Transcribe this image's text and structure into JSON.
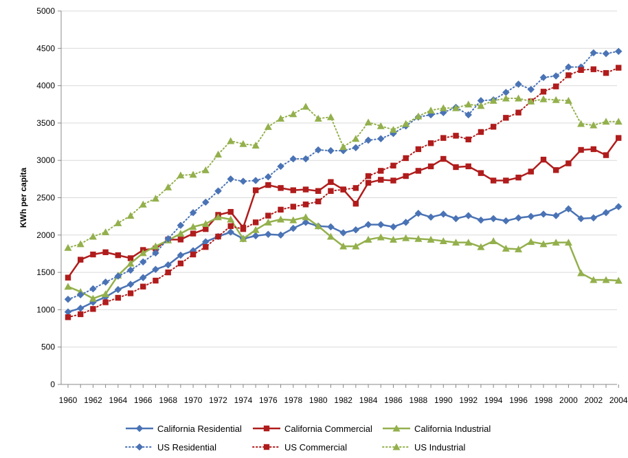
{
  "chart_data": {
    "type": "line",
    "title": "",
    "xlabel": "",
    "ylabel": "KWh per capita",
    "ylim": [
      0,
      5000
    ],
    "yticks": [
      0,
      500,
      1000,
      1500,
      2000,
      2500,
      3000,
      3500,
      4000,
      4500,
      5000
    ],
    "xticks": [
      1960,
      1962,
      1964,
      1966,
      1968,
      1970,
      1972,
      1974,
      1976,
      1978,
      1980,
      1982,
      1984,
      1986,
      1988,
      1990,
      1992,
      1994,
      1996,
      1998,
      2000,
      2002,
      2004
    ],
    "grid": "horizontal",
    "legend": "bottom",
    "x": [
      1960,
      1961,
      1962,
      1963,
      1964,
      1965,
      1966,
      1967,
      1968,
      1969,
      1970,
      1971,
      1972,
      1973,
      1974,
      1975,
      1976,
      1977,
      1978,
      1979,
      1980,
      1981,
      1982,
      1983,
      1984,
      1985,
      1986,
      1987,
      1988,
      1989,
      1990,
      1991,
      1992,
      1993,
      1994,
      1995,
      1996,
      1997,
      1998,
      1999,
      2000,
      2001,
      2002,
      2003,
      2004
    ],
    "series": [
      {
        "name": "California Residential",
        "color": "#4a73b5",
        "style": "solid",
        "marker": "diamond",
        "values": [
          970,
          1020,
          1100,
          1170,
          1270,
          1340,
          1430,
          1540,
          1600,
          1730,
          1790,
          1910,
          1980,
          2040,
          1950,
          1990,
          2010,
          2000,
          2090,
          2170,
          2120,
          2110,
          2030,
          2070,
          2140,
          2140,
          2110,
          2170,
          2290,
          2240,
          2280,
          2220,
          2260,
          2200,
          2220,
          2190,
          2230,
          2250,
          2280,
          2260,
          2350,
          2220,
          2230,
          2300,
          2380
        ]
      },
      {
        "name": "California Commercial",
        "color": "#b01c1c",
        "style": "solid",
        "marker": "square",
        "values": [
          1430,
          1670,
          1740,
          1770,
          1730,
          1690,
          1800,
          1820,
          1940,
          1940,
          2020,
          2080,
          2270,
          2310,
          2100,
          2600,
          2670,
          2630,
          2600,
          2610,
          2590,
          2710,
          2610,
          2420,
          2700,
          2740,
          2730,
          2790,
          2860,
          2920,
          3020,
          2910,
          2920,
          2830,
          2730,
          2730,
          2770,
          2850,
          3010,
          2870,
          2960,
          3140,
          3150,
          3070,
          3300
        ]
      },
      {
        "name": "California Industrial",
        "color": "#93b04c",
        "style": "solid",
        "marker": "triangle",
        "values": [
          1310,
          1240,
          1150,
          1210,
          1460,
          1620,
          1760,
          1850,
          1930,
          2020,
          2110,
          2150,
          2240,
          2210,
          1950,
          2070,
          2170,
          2210,
          2200,
          2240,
          2120,
          1980,
          1850,
          1850,
          1940,
          1970,
          1940,
          1960,
          1950,
          1940,
          1920,
          1900,
          1900,
          1840,
          1920,
          1820,
          1810,
          1910,
          1880,
          1900,
          1900,
          1490,
          1400,
          1400,
          1390
        ]
      },
      {
        "name": "US Residential",
        "color": "#4a73b5",
        "style": "dotted",
        "marker": "diamond",
        "values": [
          1140,
          1200,
          1280,
          1370,
          1450,
          1530,
          1640,
          1760,
          1950,
          2130,
          2300,
          2440,
          2590,
          2750,
          2720,
          2730,
          2780,
          2920,
          3020,
          3020,
          3140,
          3130,
          3130,
          3170,
          3270,
          3290,
          3360,
          3460,
          3580,
          3610,
          3640,
          3710,
          3610,
          3800,
          3810,
          3910,
          4020,
          3950,
          4110,
          4130,
          4250,
          4250,
          4440,
          4430,
          4460
        ]
      },
      {
        "name": "US Commercial",
        "color": "#b01c1c",
        "style": "dotted",
        "marker": "square",
        "values": [
          900,
          940,
          1010,
          1100,
          1160,
          1220,
          1310,
          1390,
          1500,
          1620,
          1740,
          1840,
          1980,
          2120,
          2080,
          2170,
          2260,
          2340,
          2380,
          2410,
          2450,
          2590,
          2610,
          2630,
          2790,
          2860,
          2930,
          3030,
          3150,
          3230,
          3300,
          3330,
          3280,
          3380,
          3450,
          3570,
          3640,
          3790,
          3920,
          3990,
          4140,
          4210,
          4220,
          4170,
          4240
        ]
      },
      {
        "name": "US Industrial",
        "color": "#93b04c",
        "style": "dotted",
        "marker": "triangle",
        "values": [
          1830,
          1880,
          1980,
          2040,
          2160,
          2260,
          2410,
          2490,
          2640,
          2800,
          2810,
          2870,
          3080,
          3260,
          3220,
          3200,
          3450,
          3560,
          3620,
          3720,
          3560,
          3580,
          3180,
          3290,
          3510,
          3460,
          3410,
          3490,
          3590,
          3670,
          3700,
          3700,
          3750,
          3730,
          3800,
          3830,
          3830,
          3790,
          3820,
          3810,
          3800,
          3490,
          3470,
          3520,
          3520
        ]
      }
    ]
  }
}
